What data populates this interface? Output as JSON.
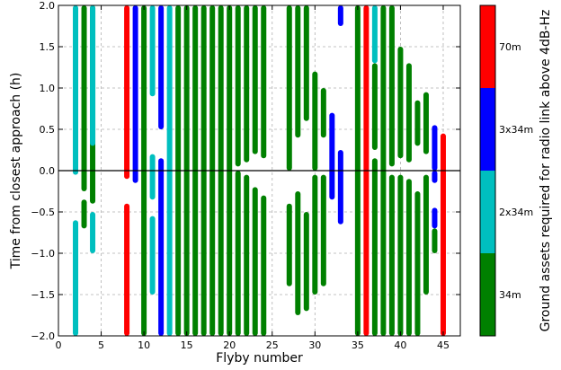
{
  "chart_data": {
    "type": "bar",
    "xlabel": "Flyby number",
    "ylabel": "Time from closest approach (h)",
    "xlim": [
      0,
      47
    ],
    "ylim": [
      -2.0,
      2.0
    ],
    "x_ticks": [
      "0",
      "5",
      "10",
      "15",
      "20",
      "25",
      "30",
      "35",
      "40",
      "45"
    ],
    "y_ticks": [
      "-2.0",
      "-1.5",
      "-1.0",
      "-0.5",
      "0.0",
      "0.5",
      "1.0",
      "1.5",
      "2.0"
    ],
    "grid": true,
    "colors": {
      "34m": "#008000",
      "2x34m": "#00bfbf",
      "3x34m": "#0000ff",
      "70m": "#ff0000"
    },
    "colorbar": {
      "label": "Ground assets required for radio link above 4dB-Hz",
      "levels": [
        {
          "name": "34m",
          "color": "#008000"
        },
        {
          "name": "2x34m",
          "color": "#00bfbf"
        },
        {
          "name": "3x34m",
          "color": "#0000ff"
        },
        {
          "name": "70m",
          "color": "#ff0000"
        }
      ]
    },
    "series": [
      {
        "x": 2,
        "segments": [
          {
            "from": -0.05,
            "to": 2.0,
            "level": "2x34m"
          },
          {
            "from": -2.0,
            "to": -0.6,
            "level": "2x34m"
          }
        ]
      },
      {
        "x": 3,
        "segments": [
          {
            "from": -0.25,
            "to": 2.0,
            "level": "34m"
          },
          {
            "from": -0.7,
            "to": -0.35,
            "level": "34m"
          }
        ]
      },
      {
        "x": 4,
        "segments": [
          {
            "from": -0.4,
            "to": 2.0,
            "level": "34m"
          },
          {
            "from": 0.3,
            "to": 2.0,
            "level": "2x34m"
          },
          {
            "from": -1.0,
            "to": -0.5,
            "level": "2x34m"
          }
        ]
      },
      {
        "x": 8,
        "segments": [
          {
            "from": -0.1,
            "to": 2.0,
            "level": "70m"
          },
          {
            "from": -2.0,
            "to": -0.4,
            "level": "70m"
          }
        ]
      },
      {
        "x": 9,
        "segments": [
          {
            "from": -0.15,
            "to": 2.0,
            "level": "3x34m"
          }
        ]
      },
      {
        "x": 10,
        "segments": [
          {
            "from": -2.0,
            "to": 2.0,
            "level": "34m"
          }
        ]
      },
      {
        "x": 11,
        "segments": [
          {
            "from": 0.9,
            "to": 2.0,
            "level": "2x34m"
          },
          {
            "from": -0.35,
            "to": 0.2,
            "level": "2x34m"
          },
          {
            "from": -1.5,
            "to": -0.55,
            "level": "2x34m"
          }
        ]
      },
      {
        "x": 12,
        "segments": [
          {
            "from": 0.5,
            "to": 2.0,
            "level": "3x34m"
          },
          {
            "from": -2.0,
            "to": 0.15,
            "level": "3x34m"
          }
        ]
      },
      {
        "x": 13,
        "segments": [
          {
            "from": -2.0,
            "to": 2.0,
            "level": "2x34m"
          }
        ]
      },
      {
        "x": 14,
        "segments": [
          {
            "from": -2.0,
            "to": 2.0,
            "level": "34m"
          }
        ]
      },
      {
        "x": 15,
        "segments": [
          {
            "from": -2.0,
            "to": 2.0,
            "level": "34m"
          }
        ]
      },
      {
        "x": 16,
        "segments": [
          {
            "from": -2.0,
            "to": 2.0,
            "level": "34m"
          }
        ]
      },
      {
        "x": 17,
        "segments": [
          {
            "from": -2.0,
            "to": 2.0,
            "level": "34m"
          }
        ]
      },
      {
        "x": 18,
        "segments": [
          {
            "from": -2.0,
            "to": 2.0,
            "level": "34m"
          }
        ]
      },
      {
        "x": 19,
        "segments": [
          {
            "from": -2.0,
            "to": 2.0,
            "level": "34m"
          }
        ]
      },
      {
        "x": 20,
        "segments": [
          {
            "from": -2.0,
            "to": 2.0,
            "level": "34m"
          }
        ]
      },
      {
        "x": 21,
        "segments": [
          {
            "from": 0.05,
            "to": 2.0,
            "level": "34m"
          },
          {
            "from": -2.0,
            "to": 0.0,
            "level": "34m"
          }
        ]
      },
      {
        "x": 22,
        "segments": [
          {
            "from": 0.1,
            "to": 2.0,
            "level": "34m"
          },
          {
            "from": -2.0,
            "to": -0.05,
            "level": "34m"
          }
        ]
      },
      {
        "x": 23,
        "segments": [
          {
            "from": 0.2,
            "to": 2.0,
            "level": "34m"
          },
          {
            "from": -2.0,
            "to": -0.2,
            "level": "34m"
          }
        ]
      },
      {
        "x": 24,
        "segments": [
          {
            "from": 0.15,
            "to": 2.0,
            "level": "34m"
          },
          {
            "from": -2.0,
            "to": -0.3,
            "level": "34m"
          }
        ]
      },
      {
        "x": 27,
        "segments": [
          {
            "from": 0.0,
            "to": 2.0,
            "level": "34m"
          },
          {
            "from": -1.4,
            "to": -0.4,
            "level": "34m"
          }
        ]
      },
      {
        "x": 28,
        "segments": [
          {
            "from": 0.4,
            "to": 2.0,
            "level": "34m"
          },
          {
            "from": -1.75,
            "to": -0.25,
            "level": "34m"
          }
        ]
      },
      {
        "x": 29,
        "segments": [
          {
            "from": 0.6,
            "to": 2.0,
            "level": "34m"
          },
          {
            "from": -1.7,
            "to": -0.5,
            "level": "34m"
          }
        ]
      },
      {
        "x": 30,
        "segments": [
          {
            "from": 0.0,
            "to": 1.2,
            "level": "34m"
          },
          {
            "from": -1.5,
            "to": -0.05,
            "level": "34m"
          }
        ]
      },
      {
        "x": 31,
        "segments": [
          {
            "from": 0.4,
            "to": 1.0,
            "level": "34m"
          },
          {
            "from": -1.4,
            "to": -0.05,
            "level": "34m"
          }
        ]
      },
      {
        "x": 32,
        "segments": [
          {
            "from": -0.35,
            "to": 0.7,
            "level": "3x34m"
          }
        ]
      },
      {
        "x": 33,
        "segments": [
          {
            "from": -0.65,
            "to": 0.25,
            "level": "3x34m"
          },
          {
            "from": 1.75,
            "to": 2.0,
            "level": "3x34m"
          }
        ]
      },
      {
        "x": 35,
        "segments": [
          {
            "from": -2.0,
            "to": 2.0,
            "level": "34m"
          }
        ]
      },
      {
        "x": 36,
        "segments": [
          {
            "from": -2.0,
            "to": 2.0,
            "level": "70m"
          }
        ]
      },
      {
        "x": 37,
        "segments": [
          {
            "from": 1.3,
            "to": 2.0,
            "level": "2x34m"
          },
          {
            "from": 0.25,
            "to": 1.3,
            "level": "34m"
          },
          {
            "from": -2.0,
            "to": 0.15,
            "level": "34m"
          }
        ]
      },
      {
        "x": 38,
        "segments": [
          {
            "from": -2.0,
            "to": 2.0,
            "level": "34m"
          }
        ]
      },
      {
        "x": 39,
        "segments": [
          {
            "from": 0.05,
            "to": 2.0,
            "level": "34m"
          },
          {
            "from": -2.0,
            "to": -0.05,
            "level": "34m"
          }
        ]
      },
      {
        "x": 40,
        "segments": [
          {
            "from": 0.15,
            "to": 1.5,
            "level": "34m"
          },
          {
            "from": -2.0,
            "to": -0.05,
            "level": "34m"
          }
        ]
      },
      {
        "x": 41,
        "segments": [
          {
            "from": 0.1,
            "to": 1.3,
            "level": "34m"
          },
          {
            "from": -2.0,
            "to": -0.1,
            "level": "34m"
          }
        ]
      },
      {
        "x": 42,
        "segments": [
          {
            "from": 0.3,
            "to": 0.85,
            "level": "34m"
          },
          {
            "from": -2.0,
            "to": -0.25,
            "level": "34m"
          }
        ]
      },
      {
        "x": 43,
        "segments": [
          {
            "from": 0.2,
            "to": 0.95,
            "level": "34m"
          },
          {
            "from": -1.5,
            "to": -0.05,
            "level": "34m"
          }
        ]
      },
      {
        "x": 44,
        "segments": [
          {
            "from": 0.0,
            "to": 0.55,
            "level": "3x34m"
          },
          {
            "from": -0.15,
            "to": 0.0,
            "level": "3x34m"
          },
          {
            "from": -0.7,
            "to": -0.45,
            "level": "3x34m"
          },
          {
            "from": -1.0,
            "to": -0.7,
            "level": "34m"
          }
        ]
      },
      {
        "x": 45,
        "segments": [
          {
            "from": -2.0,
            "to": 0.45,
            "level": "70m"
          }
        ]
      }
    ]
  }
}
